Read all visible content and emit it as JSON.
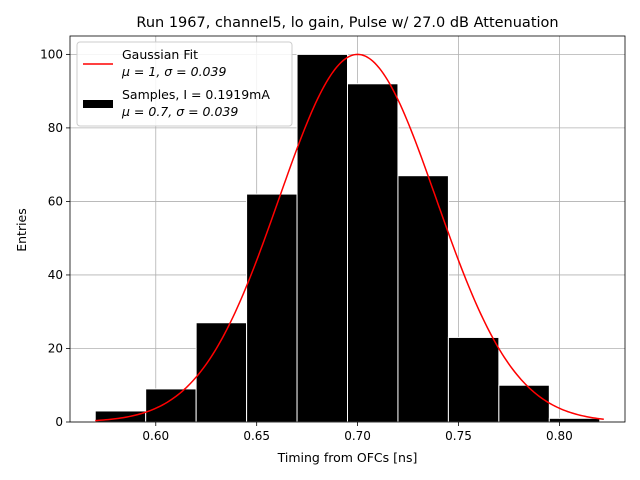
{
  "chart_data": {
    "type": "bar",
    "title": "Run 1967, channel5, lo gain, Pulse w/ 27.0 dB Attenuation",
    "xlabel": "Timing from OFCs [ns]",
    "ylabel": "Entries",
    "xlim": [
      0.5575,
      0.8325
    ],
    "ylim": [
      0,
      105
    ],
    "grid": true,
    "xticks": [
      "0.60",
      "0.65",
      "0.70",
      "0.75",
      "0.80"
    ],
    "xtick_values": [
      0.6,
      0.65,
      0.7,
      0.75,
      0.8
    ],
    "yticks": [
      "0",
      "20",
      "40",
      "60",
      "80",
      "100"
    ],
    "ytick_values": [
      0,
      20,
      40,
      60,
      80,
      100
    ],
    "histogram": {
      "bin_edges": [
        0.57,
        0.595,
        0.62,
        0.645,
        0.67,
        0.695,
        0.72,
        0.745,
        0.77,
        0.795,
        0.82
      ],
      "counts": [
        3,
        9,
        27,
        62,
        100,
        92,
        67,
        23,
        10,
        1
      ],
      "color": "#000000",
      "edgecolor": "#ffffff"
    },
    "fit": {
      "mu": 0.7,
      "sigma": 0.039,
      "amplitude": 100,
      "x_range": [
        0.57,
        0.822
      ],
      "color": "#ff0000"
    },
    "legend": {
      "placement": "top-left",
      "entries": [
        {
          "line1": "Gaussian Fit",
          "line2": "μ = 1, σ = 0.039",
          "color": "#ff0000",
          "kind": "line"
        },
        {
          "line1": "Samples, I = 0.1919mA",
          "line2": "μ = 0.7, σ = 0.039",
          "color": "#000000",
          "kind": "patch"
        }
      ]
    }
  }
}
